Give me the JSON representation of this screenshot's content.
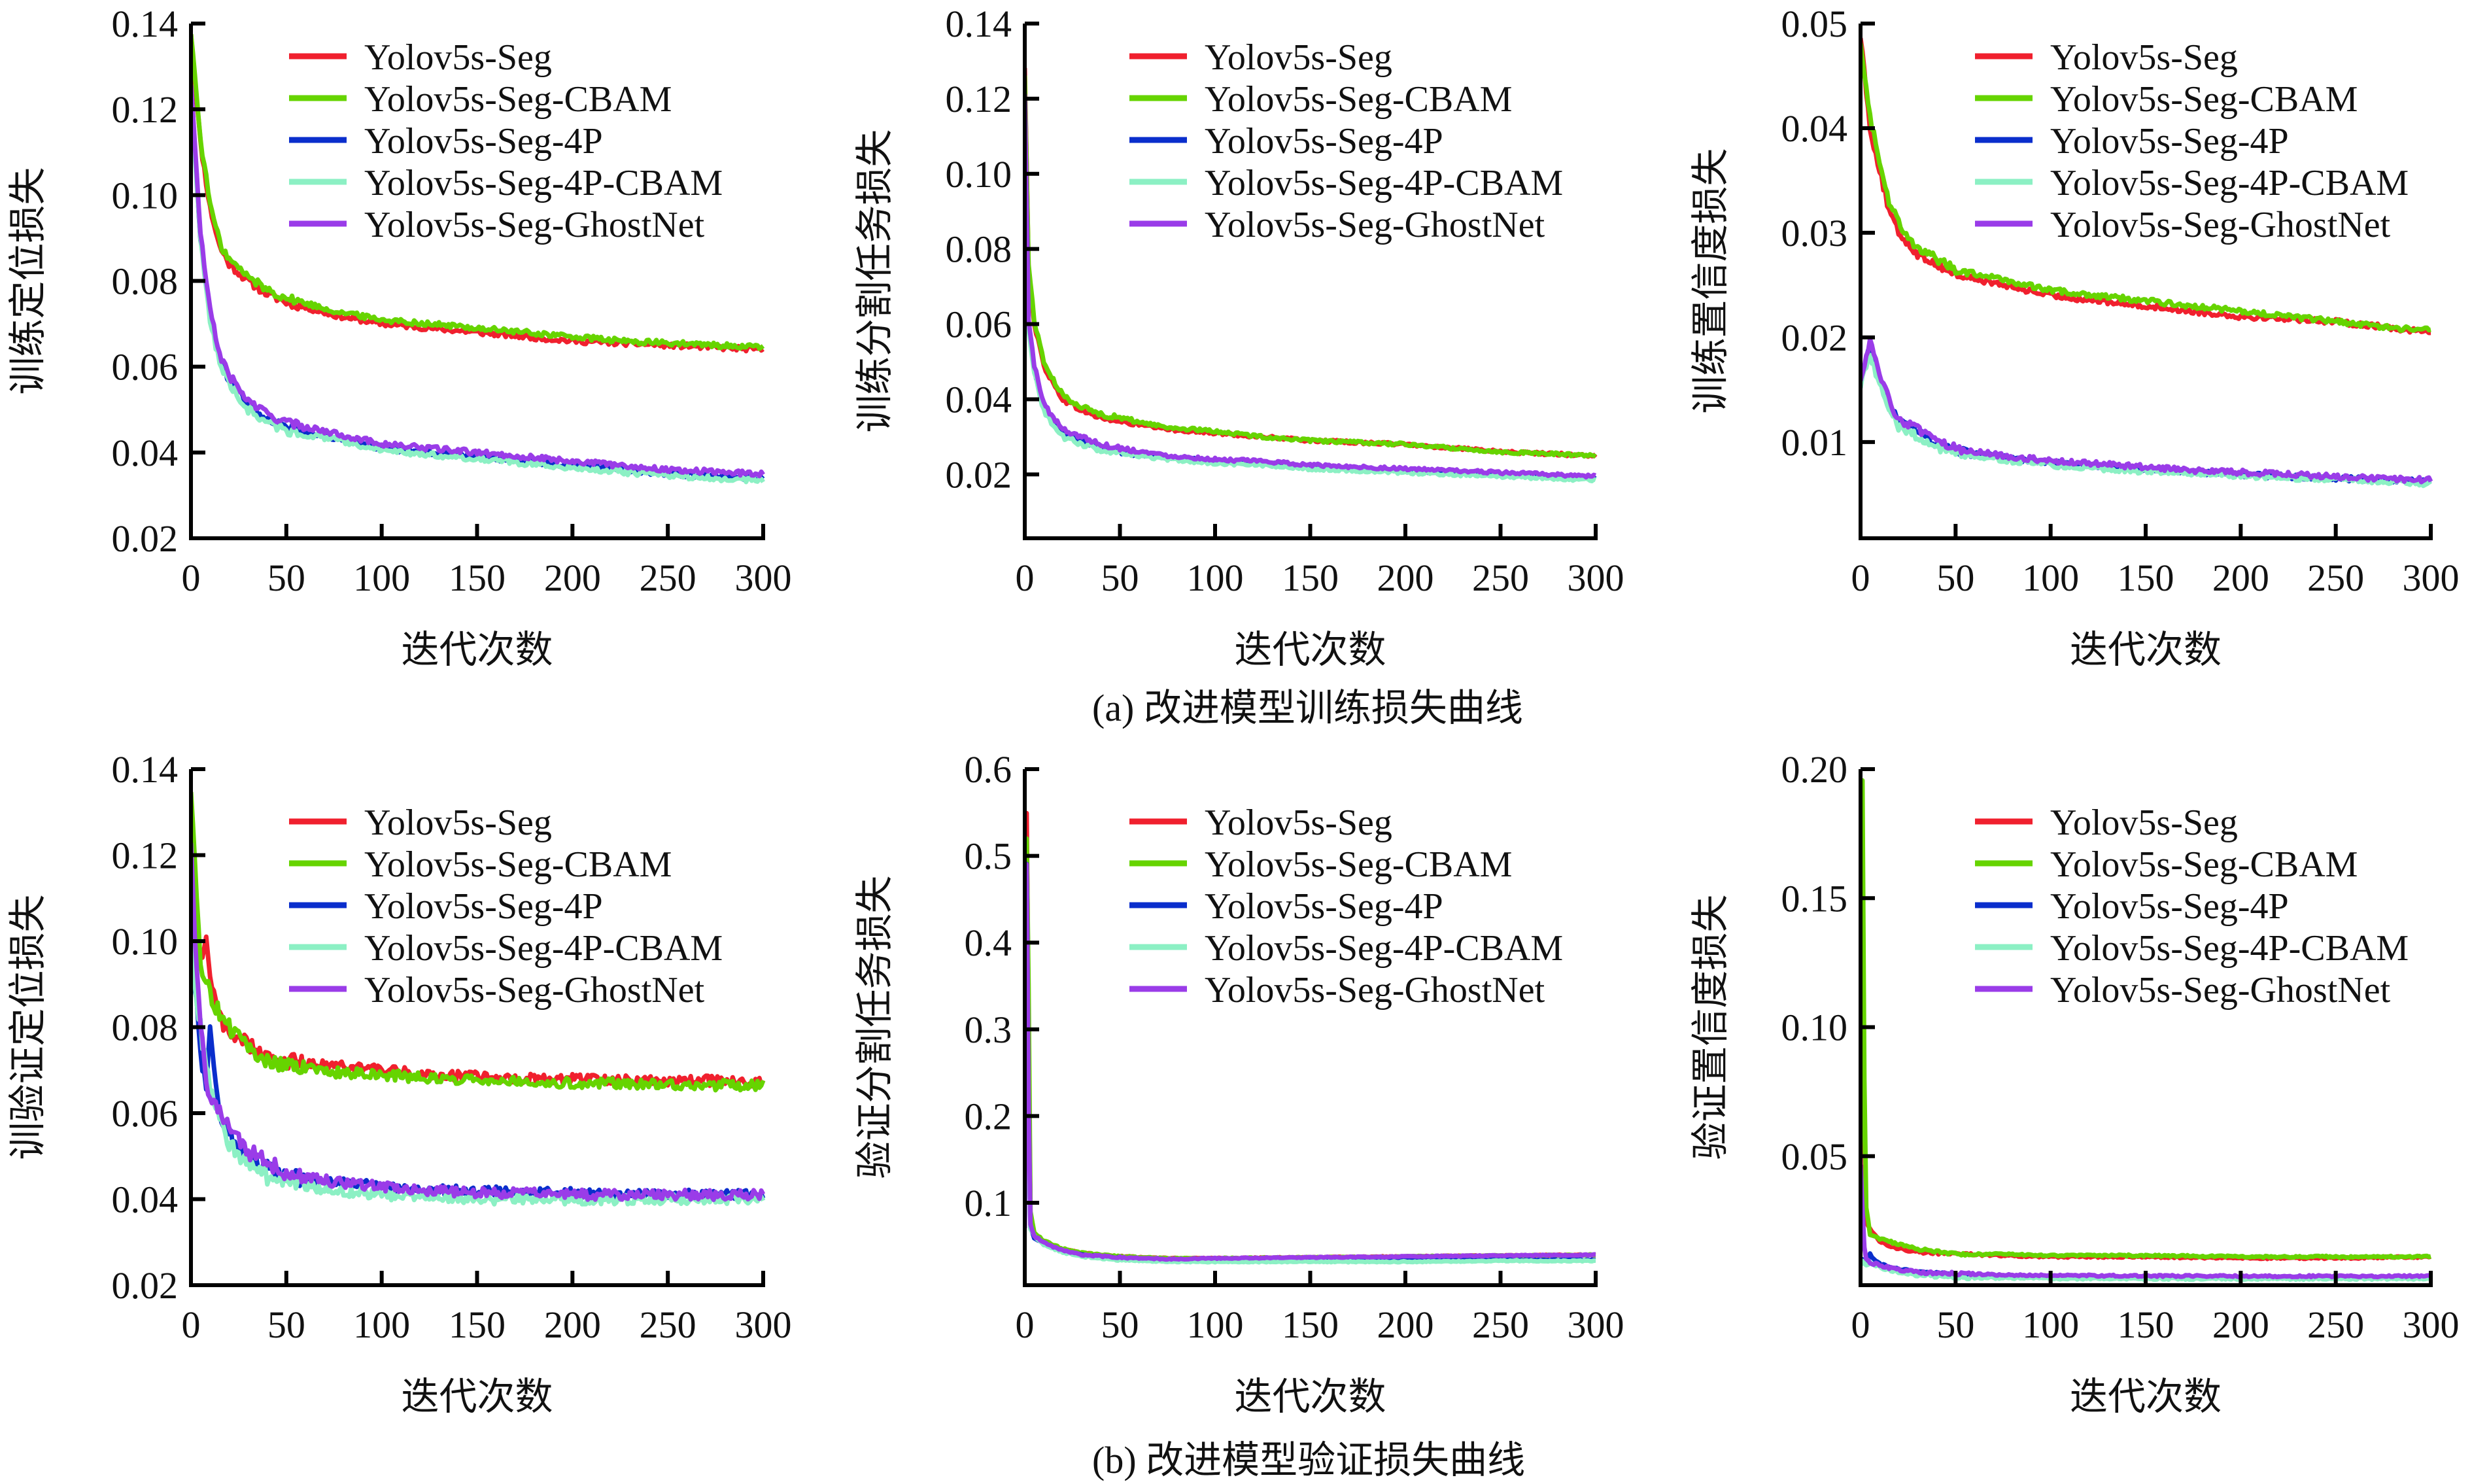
{
  "figure": {
    "caption_a": "(a) 改进模型训练损失曲线",
    "caption_b": "(b) 改进模型验证损失曲线"
  },
  "legend": [
    {
      "name": "Yolov5s-Seg",
      "color": "#f0202e"
    },
    {
      "name": "Yolov5s-Seg-CBAM",
      "color": "#66d400"
    },
    {
      "name": "Yolov5s-Seg-4P",
      "color": "#0a2ecc"
    },
    {
      "name": "Yolov5s-Seg-4P-CBAM",
      "color": "#8cf0c4"
    },
    {
      "name": "Yolov5s-Seg-GhostNet",
      "color": "#9a3ce8"
    }
  ],
  "chart_data": [
    {
      "id": "train-box",
      "type": "line",
      "title": "",
      "xlabel": "迭代次数",
      "ylabel": "训练定位损失",
      "xlim": [
        0,
        300
      ],
      "ylim": [
        0.02,
        0.14
      ],
      "xticks": [
        0,
        50,
        100,
        150,
        200,
        250,
        300
      ],
      "yticks": [
        "0.02",
        "0.04",
        "0.06",
        "0.08",
        "0.10",
        "0.12",
        "0.14"
      ],
      "ytick_values": [
        0.02,
        0.04,
        0.06,
        0.08,
        0.1,
        0.12,
        0.14
      ],
      "legend_position": "top-right",
      "grid": false,
      "x": [
        0,
        5,
        10,
        15,
        20,
        30,
        40,
        50,
        75,
        100,
        125,
        150,
        175,
        200,
        225,
        250,
        275,
        300
      ],
      "series": [
        {
          "name": "Yolov5s-Seg",
          "values": [
            0.138,
            0.112,
            0.097,
            0.088,
            0.084,
            0.08,
            0.077,
            0.075,
            0.072,
            0.07,
            0.069,
            0.068,
            0.067,
            0.066,
            0.0655,
            0.065,
            0.0645,
            0.064
          ]
        },
        {
          "name": "Yolov5s-Seg-CBAM",
          "values": [
            0.138,
            0.113,
            0.098,
            0.089,
            0.085,
            0.081,
            0.078,
            0.076,
            0.073,
            0.071,
            0.07,
            0.069,
            0.068,
            0.067,
            0.066,
            0.0655,
            0.065,
            0.0645
          ]
        },
        {
          "name": "Yolov5s-Seg-4P",
          "values": [
            0.125,
            0.09,
            0.072,
            0.062,
            0.057,
            0.051,
            0.048,
            0.046,
            0.0435,
            0.041,
            0.04,
            0.039,
            0.038,
            0.037,
            0.036,
            0.035,
            0.0345,
            0.034
          ]
        },
        {
          "name": "Yolov5s-Seg-4P-CBAM",
          "values": [
            0.124,
            0.089,
            0.071,
            0.061,
            0.056,
            0.05,
            0.047,
            0.045,
            0.043,
            0.0405,
            0.0395,
            0.0385,
            0.0375,
            0.0365,
            0.0355,
            0.0345,
            0.034,
            0.0335
          ]
        },
        {
          "name": "Yolov5s-Seg-GhostNet",
          "values": [
            0.126,
            0.091,
            0.073,
            0.063,
            0.058,
            0.052,
            0.049,
            0.047,
            0.0445,
            0.042,
            0.041,
            0.04,
            0.039,
            0.038,
            0.037,
            0.036,
            0.0355,
            0.035
          ]
        }
      ]
    },
    {
      "id": "train-seg",
      "type": "line",
      "title": "",
      "xlabel": "迭代次数",
      "ylabel": "训练分割任务损失",
      "xlim": [
        0,
        300
      ],
      "ylim": [
        0.003,
        0.14
      ],
      "xticks": [
        0,
        50,
        100,
        150,
        200,
        250,
        300
      ],
      "yticks": [
        "0.02",
        "0.04",
        "0.06",
        "0.08",
        "0.10",
        "0.12",
        "0.14"
      ],
      "ytick_values": [
        0.02,
        0.04,
        0.06,
        0.08,
        0.1,
        0.12,
        0.14
      ],
      "legend_position": "top-right",
      "grid": false,
      "x": [
        0,
        2,
        5,
        10,
        15,
        20,
        30,
        40,
        50,
        75,
        100,
        125,
        150,
        175,
        200,
        225,
        250,
        275,
        300
      ],
      "series": [
        {
          "name": "Yolov5s-Seg",
          "values": [
            0.128,
            0.075,
            0.06,
            0.049,
            0.044,
            0.04,
            0.037,
            0.035,
            0.034,
            0.032,
            0.031,
            0.03,
            0.029,
            0.0285,
            0.028,
            0.027,
            0.026,
            0.0255,
            0.025
          ]
        },
        {
          "name": "Yolov5s-Seg-CBAM",
          "values": [
            0.126,
            0.076,
            0.061,
            0.05,
            0.045,
            0.041,
            0.038,
            0.036,
            0.035,
            0.0325,
            0.0315,
            0.03,
            0.029,
            0.0285,
            0.028,
            0.027,
            0.026,
            0.0255,
            0.025
          ]
        },
        {
          "name": "Yolov5s-Seg-4P",
          "values": [
            0.12,
            0.06,
            0.048,
            0.038,
            0.034,
            0.031,
            0.029,
            0.027,
            0.026,
            0.0245,
            0.0235,
            0.023,
            0.022,
            0.0215,
            0.021,
            0.0205,
            0.02,
            0.0195,
            0.019
          ]
        },
        {
          "name": "Yolov5s-Seg-4P-CBAM",
          "values": [
            0.118,
            0.059,
            0.047,
            0.037,
            0.033,
            0.03,
            0.028,
            0.0265,
            0.0255,
            0.024,
            0.023,
            0.0225,
            0.0215,
            0.021,
            0.0205,
            0.02,
            0.0195,
            0.019,
            0.0185
          ]
        },
        {
          "name": "Yolov5s-Seg-GhostNet",
          "values": [
            0.121,
            0.061,
            0.049,
            0.039,
            0.035,
            0.032,
            0.03,
            0.028,
            0.027,
            0.025,
            0.024,
            0.0235,
            0.0225,
            0.022,
            0.0215,
            0.021,
            0.0205,
            0.02,
            0.0195
          ]
        }
      ]
    },
    {
      "id": "train-obj",
      "type": "line",
      "title": "",
      "xlabel": "迭代次数",
      "ylabel": "训练置信度损失",
      "xlim": [
        0,
        300
      ],
      "ylim": [
        0.0008,
        0.05
      ],
      "xticks": [
        0,
        50,
        100,
        150,
        200,
        250,
        300
      ],
      "yticks": [
        "0.01",
        "0.02",
        "0.03",
        "0.04",
        "0.05"
      ],
      "ytick_values": [
        0.01,
        0.02,
        0.03,
        0.04,
        0.05
      ],
      "legend_position": "top-right",
      "grid": false,
      "x": [
        0,
        5,
        10,
        15,
        20,
        30,
        40,
        50,
        75,
        100,
        125,
        150,
        175,
        200,
        225,
        250,
        275,
        300
      ],
      "series": [
        {
          "name": "Yolov5s-Seg",
          "values": [
            0.049,
            0.04,
            0.036,
            0.032,
            0.03,
            0.028,
            0.027,
            0.026,
            0.025,
            0.024,
            0.0235,
            0.023,
            0.0225,
            0.022,
            0.0218,
            0.0215,
            0.021,
            0.0205
          ]
        },
        {
          "name": "Yolov5s-Seg-CBAM",
          "values": [
            0.0485,
            0.041,
            0.037,
            0.033,
            0.031,
            0.0285,
            0.0275,
            0.0265,
            0.0255,
            0.0245,
            0.024,
            0.0235,
            0.023,
            0.0225,
            0.022,
            0.0215,
            0.021,
            0.0207
          ]
        },
        {
          "name": "Yolov5s-Seg-4P",
          "values": [
            0.016,
            0.019,
            0.016,
            0.0135,
            0.012,
            0.011,
            0.0098,
            0.0092,
            0.0085,
            0.008,
            0.0077,
            0.0074,
            0.0071,
            0.0069,
            0.0067,
            0.0065,
            0.0064,
            0.0062
          ]
        },
        {
          "name": "Yolov5s-Seg-4P-CBAM",
          "values": [
            0.0155,
            0.0185,
            0.0155,
            0.013,
            0.0115,
            0.0105,
            0.0095,
            0.009,
            0.0083,
            0.0078,
            0.0075,
            0.0072,
            0.007,
            0.0068,
            0.0066,
            0.0064,
            0.0062,
            0.006
          ]
        },
        {
          "name": "Yolov5s-Seg-GhostNet",
          "values": [
            0.0162,
            0.0195,
            0.0165,
            0.014,
            0.0122,
            0.0112,
            0.01,
            0.0094,
            0.0087,
            0.0082,
            0.0079,
            0.0076,
            0.0073,
            0.0071,
            0.0069,
            0.0067,
            0.0065,
            0.0064
          ]
        }
      ]
    },
    {
      "id": "val-box",
      "type": "line",
      "title": "",
      "xlabel": "迭代次数",
      "ylabel": "训验证定位损失",
      "xlim": [
        0,
        300
      ],
      "ylim": [
        0.02,
        0.14
      ],
      "xticks": [
        0,
        50,
        100,
        150,
        200,
        250,
        300
      ],
      "yticks": [
        "0.02",
        "0.04",
        "0.06",
        "0.08",
        "0.10",
        "0.12",
        "0.14"
      ],
      "ytick_values": [
        0.02,
        0.04,
        0.06,
        0.08,
        0.1,
        0.12,
        0.14
      ],
      "legend_position": "top-right",
      "grid": false,
      "x": [
        0,
        2,
        5,
        8,
        10,
        15,
        20,
        30,
        40,
        50,
        75,
        100,
        125,
        150,
        175,
        200,
        225,
        250,
        275,
        300
      ],
      "series": [
        {
          "name": "Yolov5s-Seg",
          "values": [
            0.128,
            0.115,
            0.095,
            0.102,
            0.09,
            0.082,
            0.079,
            0.076,
            0.073,
            0.072,
            0.071,
            0.07,
            0.069,
            0.0685,
            0.068,
            0.068,
            0.0678,
            0.0675,
            0.0675,
            0.067
          ]
        },
        {
          "name": "Yolov5s-Seg-CBAM",
          "values": [
            0.135,
            0.118,
            0.094,
            0.092,
            0.088,
            0.083,
            0.08,
            0.075,
            0.072,
            0.071,
            0.0695,
            0.069,
            0.068,
            0.068,
            0.0675,
            0.067,
            0.067,
            0.0668,
            0.0665,
            0.0665
          ]
        },
        {
          "name": "Yolov5s-Seg-4P",
          "values": [
            0.1,
            0.09,
            0.075,
            0.064,
            0.08,
            0.06,
            0.055,
            0.05,
            0.047,
            0.045,
            0.044,
            0.043,
            0.042,
            0.042,
            0.0415,
            0.0415,
            0.041,
            0.041,
            0.041,
            0.041
          ]
        },
        {
          "name": "Yolov5s-Seg-4P-CBAM",
          "values": [
            0.105,
            0.09,
            0.08,
            0.07,
            0.066,
            0.058,
            0.053,
            0.048,
            0.045,
            0.044,
            0.042,
            0.041,
            0.0405,
            0.04,
            0.04,
            0.04,
            0.04,
            0.04,
            0.04,
            0.04
          ]
        },
        {
          "name": "Yolov5s-Seg-GhostNet",
          "values": [
            0.123,
            0.1,
            0.08,
            0.067,
            0.065,
            0.06,
            0.056,
            0.051,
            0.049,
            0.046,
            0.044,
            0.043,
            0.042,
            0.0415,
            0.0415,
            0.041,
            0.041,
            0.041,
            0.041,
            0.041
          ]
        }
      ]
    },
    {
      "id": "val-seg",
      "type": "line",
      "title": "",
      "xlabel": "迭代次数",
      "ylabel": "验证分割任务损失",
      "xlim": [
        0,
        300
      ],
      "ylim": [
        0.005,
        0.6
      ],
      "xticks": [
        0,
        50,
        100,
        150,
        200,
        250,
        300
      ],
      "yticks": [
        "0.1",
        "0.2",
        "0.3",
        "0.4",
        "0.5",
        "0.6"
      ],
      "ytick_values": [
        0.1,
        0.2,
        0.3,
        0.4,
        0.5,
        0.6
      ],
      "legend_position": "top-right",
      "grid": false,
      "x": [
        0,
        1,
        2,
        3,
        5,
        10,
        20,
        30,
        50,
        75,
        100,
        150,
        200,
        250,
        300
      ],
      "series": [
        {
          "name": "Yolov5s-Seg",
          "values": [
            0.08,
            0.55,
            0.3,
            0.08,
            0.065,
            0.055,
            0.046,
            0.042,
            0.038,
            0.036,
            0.036,
            0.037,
            0.038,
            0.039,
            0.04
          ]
        },
        {
          "name": "Yolov5s-Seg-CBAM",
          "values": [
            0.08,
            0.52,
            0.35,
            0.09,
            0.066,
            0.056,
            0.047,
            0.042,
            0.038,
            0.036,
            0.036,
            0.037,
            0.038,
            0.039,
            0.04
          ]
        },
        {
          "name": "Yolov5s-Seg-4P",
          "values": [
            0.07,
            0.49,
            0.2,
            0.07,
            0.06,
            0.053,
            0.044,
            0.04,
            0.036,
            0.034,
            0.034,
            0.034,
            0.034,
            0.034,
            0.034
          ]
        },
        {
          "name": "Yolov5s-Seg-4P-CBAM",
          "values": [
            0.07,
            0.46,
            0.18,
            0.07,
            0.062,
            0.052,
            0.043,
            0.038,
            0.034,
            0.032,
            0.032,
            0.032,
            0.032,
            0.033,
            0.033
          ]
        },
        {
          "name": "Yolov5s-Seg-GhostNet",
          "values": [
            0.07,
            0.49,
            0.22,
            0.075,
            0.062,
            0.054,
            0.045,
            0.04,
            0.037,
            0.035,
            0.036,
            0.037,
            0.038,
            0.039,
            0.04
          ]
        }
      ]
    },
    {
      "id": "val-obj",
      "type": "line",
      "title": "",
      "xlabel": "迭代次数",
      "ylabel": "验证置信度损失",
      "xlim": [
        0,
        300
      ],
      "ylim": [
        0,
        0.2
      ],
      "xticks": [
        0,
        50,
        100,
        150,
        200,
        250,
        300
      ],
      "yticks": [
        "0.05",
        "0.10",
        "0.15",
        "0.20"
      ],
      "ytick_values": [
        0.05,
        0.1,
        0.15,
        0.2
      ],
      "legend_position": "top-right",
      "grid": false,
      "x": [
        0,
        1,
        2,
        3,
        5,
        10,
        20,
        30,
        50,
        75,
        100,
        150,
        200,
        250,
        300
      ],
      "series": [
        {
          "name": "Yolov5s-Seg",
          "values": [
            0.05,
            0.09,
            0.06,
            0.025,
            0.022,
            0.017,
            0.014,
            0.013,
            0.012,
            0.0115,
            0.011,
            0.011,
            0.0105,
            0.0105,
            0.011
          ]
        },
        {
          "name": "Yolov5s-Seg-CBAM",
          "values": [
            0.05,
            0.196,
            0.08,
            0.03,
            0.02,
            0.018,
            0.016,
            0.014,
            0.012,
            0.012,
            0.0115,
            0.0115,
            0.011,
            0.011,
            0.011
          ]
        },
        {
          "name": "Yolov5s-Seg-4P",
          "values": [
            0.008,
            0.01,
            0.009,
            0.008,
            0.012,
            0.008,
            0.006,
            0.005,
            0.004,
            0.0035,
            0.0033,
            0.003,
            0.003,
            0.003,
            0.003
          ]
        },
        {
          "name": "Yolov5s-Seg-4P-CBAM",
          "values": [
            0.008,
            0.009,
            0.008,
            0.008,
            0.009,
            0.007,
            0.005,
            0.004,
            0.003,
            0.0028,
            0.0026,
            0.0025,
            0.0025,
            0.0025,
            0.0025
          ]
        },
        {
          "name": "Yolov5s-Seg-GhostNet",
          "values": [
            0.047,
            0.03,
            0.015,
            0.01,
            0.009,
            0.0075,
            0.006,
            0.005,
            0.0045,
            0.004,
            0.0038,
            0.0036,
            0.0035,
            0.0035,
            0.0035
          ]
        }
      ]
    }
  ]
}
